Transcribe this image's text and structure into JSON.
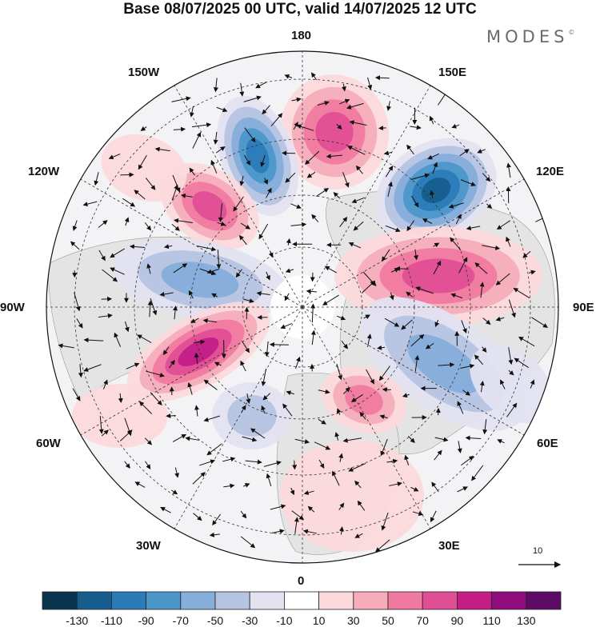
{
  "title": "Base 08/07/2025 00 UTC, valid 14/07/2025 12 UTC",
  "logo": {
    "text": "MODES",
    "mark": "©"
  },
  "map": {
    "projection": "north-polar-stereographic",
    "field": "shaded anomaly with wind vectors",
    "longitude_labels": {
      "lon_0": "0",
      "lon_30e": "30E",
      "lon_60e": "60E",
      "lon_90e": "90E",
      "lon_120e": "120E",
      "lon_150e": "150E",
      "lon_180": "180",
      "lon_150w": "150W",
      "lon_120w": "120W",
      "lon_90w": "90W",
      "lon_60w": "60W",
      "lon_30w": "30W"
    },
    "graticule": "dashed",
    "land_color": "#e6e6e6"
  },
  "colorbar": {
    "colors": [
      "#08344f",
      "#175e8e",
      "#2b7bb8",
      "#4c97c9",
      "#85aedb",
      "#b6c4e2",
      "#e2e2f0",
      "#ffffff",
      "#fbd9dc",
      "#f6adb9",
      "#f07aa0",
      "#e04f96",
      "#c21e86",
      "#8f0d7c",
      "#5b0b66"
    ],
    "labels": [
      "-130",
      "-110",
      "-90",
      "-70",
      "-50",
      "-30",
      "-10",
      "10",
      "30",
      "50",
      "70",
      "90",
      "110",
      "130"
    ]
  },
  "reference_vector": {
    "label": "10"
  }
}
